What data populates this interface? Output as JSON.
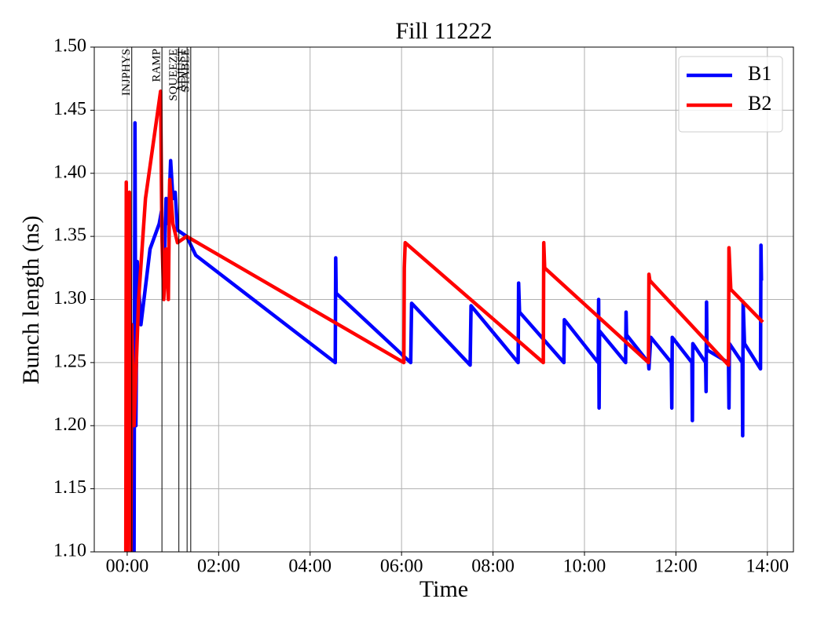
{
  "chart_data": {
    "type": "line",
    "title": "Fill 11222",
    "xlabel": "Time",
    "ylabel": "Bunch length (ns)",
    "xlim": [
      -0.72,
      14.57
    ],
    "ylim": [
      1.1,
      1.5
    ],
    "xticks": [
      {
        "value": 0,
        "label": "00:00"
      },
      {
        "value": 2,
        "label": "02:00"
      },
      {
        "value": 4,
        "label": "04:00"
      },
      {
        "value": 6,
        "label": "06:00"
      },
      {
        "value": 8,
        "label": "08:00"
      },
      {
        "value": 10,
        "label": "10:00"
      },
      {
        "value": 12,
        "label": "12:00"
      },
      {
        "value": 14,
        "label": "14:00"
      }
    ],
    "yticks": [
      {
        "value": 1.1,
        "label": "1.10"
      },
      1.15,
      {
        "value": 1.2,
        "label": "1.20"
      },
      1.25,
      {
        "value": 1.3,
        "label": "1.30"
      },
      1.35,
      {
        "value": 1.4,
        "label": "1.40"
      },
      1.45,
      {
        "value": 1.5,
        "label": "1.50"
      }
    ],
    "grid": true,
    "legend": "upper right",
    "annotations": [
      {
        "x": 0.1,
        "text": "INJPHYS"
      },
      {
        "x": 0.76,
        "text": "RAMP"
      },
      {
        "x": 1.13,
        "text": "SQUEEZE"
      },
      {
        "x": 1.31,
        "text": "ADJUST"
      },
      {
        "x": 1.39,
        "text": "STABLE"
      }
    ],
    "series": [
      {
        "name": "B1",
        "color": "#0000ff",
        "x": [
          0.08,
          0.1,
          0.15,
          0.17,
          0.19,
          0.22,
          0.3,
          0.5,
          0.7,
          0.75,
          0.8,
          0.85,
          0.9,
          0.95,
          1.0,
          1.05,
          1.1,
          1.3,
          1.5,
          4.55,
          4.56,
          4.57,
          6.05,
          6.2,
          6.22,
          7.5,
          7.52,
          8.55,
          8.56,
          8.58,
          9.55,
          9.56,
          10.3,
          10.31,
          10.32,
          10.33,
          10.9,
          10.91,
          10.92,
          11.4,
          11.41,
          11.45,
          11.9,
          11.91,
          11.92,
          12.35,
          12.36,
          12.37,
          12.65,
          12.66,
          12.67,
          12.68,
          13.15,
          13.16,
          13.17,
          13.45,
          13.46,
          13.47,
          13.5,
          13.85,
          13.86,
          13.87
        ],
        "values": [
          1.1,
          1.28,
          1.1,
          1.44,
          1.2,
          1.33,
          1.28,
          1.34,
          1.36,
          1.37,
          1.31,
          1.38,
          1.36,
          1.41,
          1.38,
          1.385,
          1.355,
          1.35,
          1.335,
          1.25,
          1.333,
          1.305,
          1.255,
          1.25,
          1.297,
          1.248,
          1.295,
          1.25,
          1.313,
          1.29,
          1.25,
          1.284,
          1.25,
          1.3,
          1.214,
          1.275,
          1.25,
          1.29,
          1.272,
          1.25,
          1.245,
          1.27,
          1.25,
          1.214,
          1.27,
          1.25,
          1.204,
          1.265,
          1.25,
          1.227,
          1.298,
          1.26,
          1.25,
          1.214,
          1.265,
          1.25,
          1.192,
          1.298,
          1.265,
          1.245,
          1.343,
          1.315
        ]
      },
      {
        "name": "B2",
        "color": "#ff0000",
        "x": [
          -0.03,
          -0.02,
          0.0,
          0.05,
          0.08,
          0.1,
          0.15,
          0.25,
          0.4,
          0.73,
          0.76,
          0.8,
          0.85,
          0.9,
          0.93,
          1.0,
          1.1,
          1.3,
          6.05,
          6.06,
          6.08,
          9.1,
          9.11,
          9.13,
          11.4,
          11.41,
          11.43,
          13.15,
          13.16,
          13.2,
          13.9
        ],
        "values": [
          1.1,
          1.393,
          1.1,
          1.385,
          1.1,
          1.28,
          1.2,
          1.3,
          1.38,
          1.465,
          1.35,
          1.3,
          1.34,
          1.3,
          1.395,
          1.36,
          1.345,
          1.35,
          1.25,
          1.325,
          1.345,
          1.25,
          1.345,
          1.325,
          1.25,
          1.32,
          1.315,
          1.248,
          1.341,
          1.308,
          1.282
        ]
      }
    ]
  }
}
